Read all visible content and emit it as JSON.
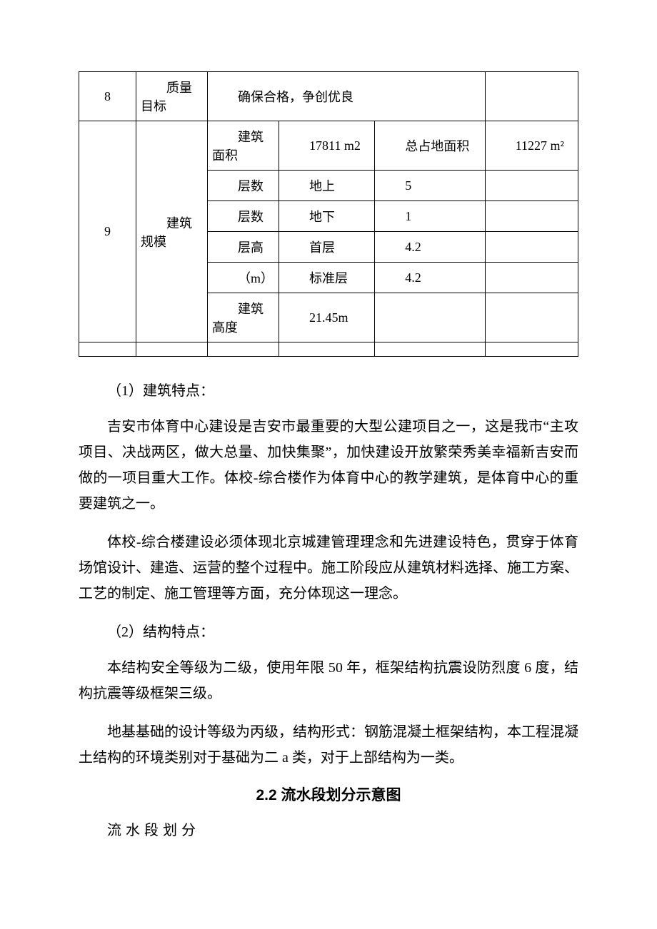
{
  "table": {
    "row8": {
      "num": "8",
      "label": "质量目标",
      "value": "确保合格，争创优良"
    },
    "row9": {
      "num": "9",
      "label": "建筑规模",
      "area": {
        "label": "建筑面积",
        "value": "17811 m2",
        "land_label": "总占地面积",
        "land_value": "11227 m²"
      },
      "floors_above": {
        "label": "层数",
        "cond": "地上",
        "value": "5"
      },
      "floors_below": {
        "label": "层数",
        "cond": "地下",
        "value": "1"
      },
      "height_first": {
        "label": "层高",
        "cond": "首层",
        "value": "4.2"
      },
      "height_std": {
        "label": "（m）",
        "cond": "标准层",
        "value": "4.2"
      },
      "bld_height": {
        "label": "建筑高度",
        "value": "21.45m"
      }
    }
  },
  "paragraphs": {
    "p1_heading": "（1）建筑特点：",
    "p1_body1": "吉安市体育中心建设是吉安市最重要的大型公建项目之一，这是我市“主攻项目、决战两区，做大总量、加快集聚”，加快建设开放繁荣秀美幸福新吉安而做的一项目重大工作。体校-综合楼作为体育中心的教学建筑，是体育中心的重要建筑之一。",
    "p1_body2": "体校-综合楼建设必须体现北京城建管理理念和先进建设特色，贯穿于体育场馆设计、建造、运营的整个过程中。施工阶段应从建筑材料选择、施工方案、工艺的制定、施工管理等方面，充分体现这一理念。",
    "p2_heading": "（2）结构特点：",
    "p2_body1": "本结构安全等级为二级，使用年限 50 年，框架结构抗震设防烈度 6 度，结构抗震等级框架三级。",
    "p2_body2": "地基基础的设计等级为丙级，结构形式：钢筋混凝土框架结构，本工程混凝土结构的环境类别对于基础为二 a 类，对于上部结构为一类。",
    "section_title": "2.2 流水段划分示意图",
    "section_sub": "流水段划分"
  }
}
